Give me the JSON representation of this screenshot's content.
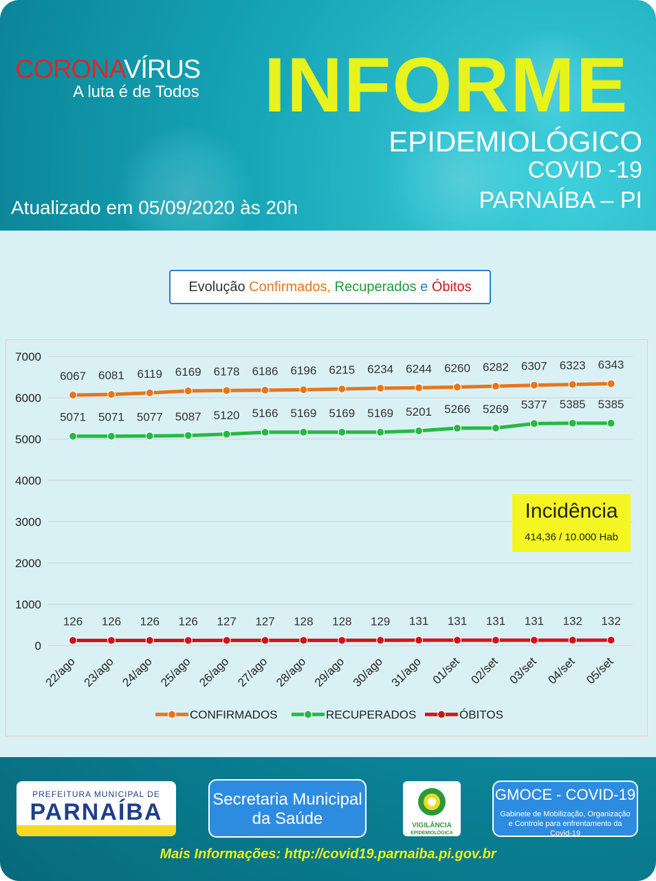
{
  "header": {
    "logo_part1": "CORONA",
    "logo_part2": "VÍRUS",
    "logo_sub": "A luta é de Todos",
    "title": "INFORME",
    "subtitle": "EPIDEMIOLÓGICO",
    "disease": "COVID -19",
    "city": "PARNAÍBA – PI",
    "updated": "Atualizado em 05/09/2020 às 20h"
  },
  "chart_title": {
    "prefix": "Evolução ",
    "confirmados": "Confirmados,",
    "recuperados": " Recuperados",
    "e": " e ",
    "obitos": "Óbitos"
  },
  "incidencia": {
    "title": "Incidência",
    "value": "414,36 / 10.000 Hab"
  },
  "chart_data": {
    "type": "line",
    "categories": [
      "22/ago",
      "23/ago",
      "24/ago",
      "25/ago",
      "26/ago",
      "27/ago",
      "28/ago",
      "29/ago",
      "30/ago",
      "31/ago",
      "01/set",
      "02/set",
      "03/set",
      "04/set",
      "05/set"
    ],
    "ylim": [
      0,
      7000
    ],
    "yticks": [
      0,
      1000,
      2000,
      3000,
      4000,
      5000,
      6000,
      7000
    ],
    "series": [
      {
        "name": "CONFIRMADOS",
        "color": "#e6761c",
        "values": [
          6067,
          6081,
          6119,
          6169,
          6178,
          6186,
          6196,
          6215,
          6234,
          6244,
          6260,
          6282,
          6307,
          6323,
          6343
        ]
      },
      {
        "name": "RECUPERADOS",
        "color": "#27b845",
        "values": [
          5071,
          5071,
          5077,
          5087,
          5120,
          5166,
          5169,
          5169,
          5169,
          5201,
          5266,
          5269,
          5377,
          5385,
          5385
        ]
      },
      {
        "name": "ÓBITOS",
        "color": "#d0141a",
        "values": [
          126,
          126,
          126,
          126,
          127,
          127,
          128,
          128,
          129,
          131,
          131,
          131,
          131,
          132,
          132
        ]
      }
    ],
    "legend": "bottom",
    "grid": true
  },
  "footer": {
    "pref_line1": "PREFEITURA MUNICIPAL DE",
    "pref_line2": "PARNAÍBA",
    "secretaria": "Secretaria Municipal da Saúde",
    "vigilancia_1": "VIGILÂNCIA",
    "vigilancia_2": "EPIDEMIOLÓGICA",
    "gmoce_title": "GMOCE - COVID-19",
    "gmoce_sub": "Gabinete de Mobilização, Organização e Controle para enfrentamento da Covid-19",
    "more_info": "Mais Informações: http://covid19.parnaiba.pi.gov.br"
  }
}
